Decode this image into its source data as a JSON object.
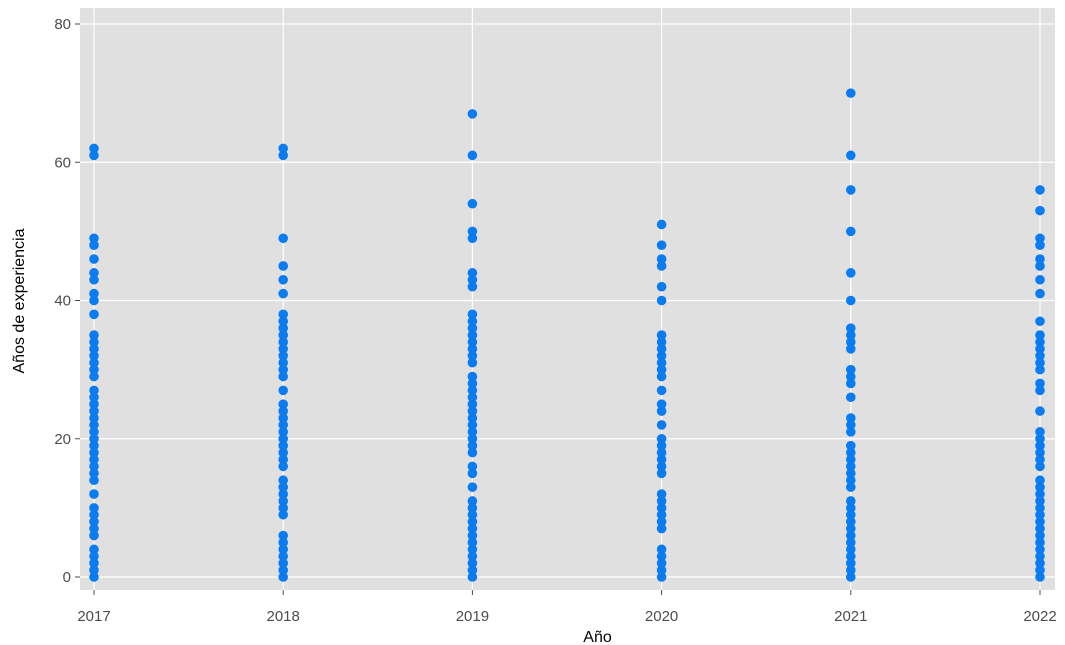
{
  "chart_data": {
    "type": "scatter",
    "xlabel": "Año",
    "ylabel": "Años de experiencia",
    "x_ticks": [
      "2017",
      "2018",
      "2019",
      "2020",
      "2021",
      "2022"
    ],
    "y_ticks": [
      0,
      20,
      40,
      60,
      80
    ],
    "ylim": [
      -2,
      82
    ],
    "grid": true,
    "colors": {
      "panel": "#e0e0e0",
      "grid": "#ffffff",
      "point": "#0a7cf0",
      "tick": "#4d4d4d"
    },
    "series": [
      {
        "x": "2017",
        "y": [
          0,
          1,
          2,
          3,
          4,
          6,
          7,
          8,
          9,
          10,
          12,
          14,
          15,
          16,
          17,
          18,
          19,
          20,
          21,
          22,
          23,
          24,
          25,
          26,
          27,
          29,
          30,
          31,
          32,
          33,
          34,
          35,
          38,
          40,
          41,
          43,
          44,
          46,
          48,
          49,
          61,
          62
        ]
      },
      {
        "x": "2018",
        "y": [
          0,
          1,
          2,
          3,
          4,
          5,
          6,
          9,
          10,
          11,
          12,
          13,
          14,
          16,
          17,
          18,
          19,
          20,
          21,
          22,
          23,
          24,
          25,
          27,
          29,
          30,
          31,
          32,
          33,
          34,
          35,
          36,
          37,
          38,
          41,
          43,
          45,
          49,
          61,
          62
        ]
      },
      {
        "x": "2019",
        "y": [
          0,
          1,
          2,
          3,
          4,
          5,
          6,
          7,
          8,
          9,
          10,
          11,
          13,
          15,
          16,
          18,
          19,
          20,
          21,
          22,
          23,
          24,
          25,
          26,
          27,
          28,
          29,
          31,
          32,
          33,
          34,
          35,
          36,
          37,
          38,
          42,
          43,
          44,
          49,
          50,
          54,
          61,
          67
        ]
      },
      {
        "x": "2020",
        "y": [
          0,
          1,
          2,
          3,
          4,
          7,
          8,
          9,
          10,
          11,
          12,
          15,
          16,
          17,
          18,
          19,
          20,
          22,
          24,
          25,
          27,
          29,
          30,
          31,
          32,
          33,
          34,
          35,
          40,
          42,
          45,
          46,
          48,
          51
        ]
      },
      {
        "x": "2021",
        "y": [
          0,
          1,
          2,
          3,
          4,
          5,
          6,
          7,
          8,
          9,
          10,
          11,
          13,
          14,
          15,
          16,
          17,
          18,
          19,
          21,
          22,
          23,
          26,
          28,
          29,
          30,
          33,
          34,
          35,
          36,
          40,
          44,
          50,
          56,
          61,
          70
        ]
      },
      {
        "x": "2022",
        "y": [
          0,
          1,
          2,
          3,
          4,
          5,
          6,
          7,
          8,
          9,
          10,
          11,
          12,
          13,
          14,
          16,
          17,
          18,
          19,
          20,
          21,
          24,
          27,
          28,
          30,
          31,
          32,
          33,
          34,
          35,
          37,
          41,
          43,
          45,
          46,
          48,
          49,
          53,
          56
        ]
      }
    ]
  }
}
